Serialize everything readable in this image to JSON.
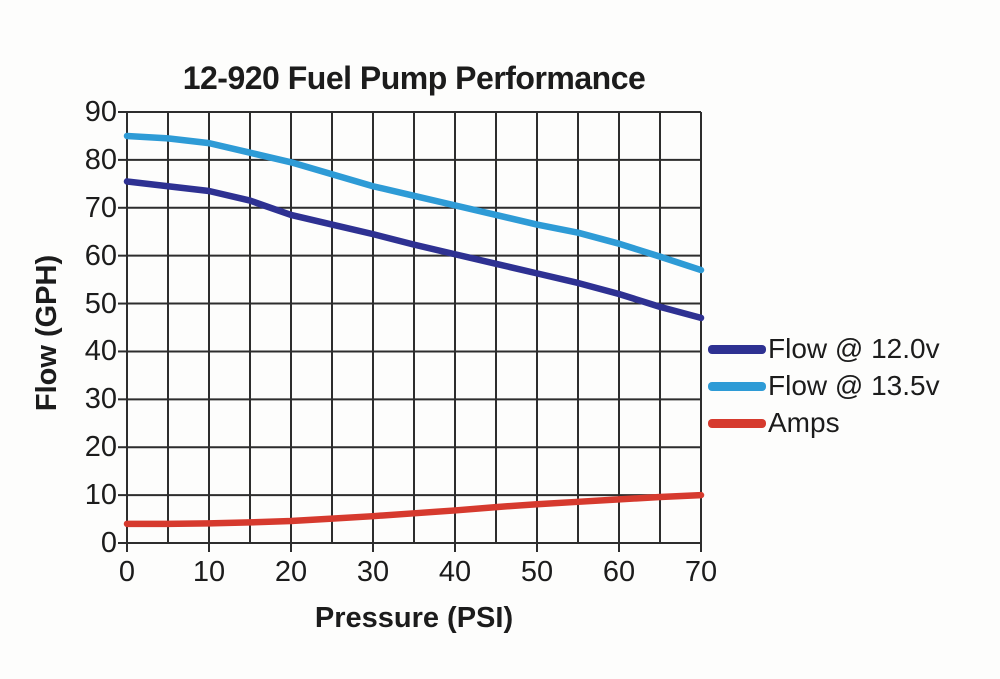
{
  "colors": {
    "grid": "#2d2d2d",
    "text": "#1c1c1c",
    "background": "#fdfdfc",
    "flow_12v": "#2E3192",
    "flow_135v": "#2E9BD6",
    "amps": "#D63A2E"
  },
  "chart_data": {
    "type": "line",
    "title": "12-920 Fuel Pump Performance",
    "xlabel": "Pressure (PSI)",
    "ylabel": "Flow (GPH)",
    "xlim": [
      0,
      70
    ],
    "ylim": [
      0,
      90
    ],
    "x_ticks": [
      0,
      10,
      20,
      30,
      40,
      50,
      60,
      70
    ],
    "y_ticks": [
      0,
      10,
      20,
      30,
      40,
      50,
      60,
      70,
      80,
      90
    ],
    "x_minor_step": 5,
    "grid": "on",
    "legend_position": "right",
    "x": [
      0,
      5,
      10,
      15,
      20,
      25,
      30,
      35,
      40,
      45,
      50,
      55,
      60,
      65,
      70
    ],
    "series": [
      {
        "name": "Flow @ 12.0v",
        "color": "#2E3192",
        "values": [
          75.5,
          74.5,
          73.5,
          71.5,
          68.5,
          66.5,
          64.5,
          62.3,
          60.3,
          58.3,
          56.3,
          54.3,
          52,
          49.3,
          47
        ]
      },
      {
        "name": "Flow @ 13.5v",
        "color": "#2E9BD6",
        "values": [
          85,
          84.5,
          83.5,
          81.5,
          79.5,
          77,
          74.5,
          72.5,
          70.5,
          68.5,
          66.5,
          64.8,
          62.5,
          59.8,
          57
        ]
      },
      {
        "name": "Amps",
        "color": "#D63A2E",
        "values": [
          4,
          4,
          4.1,
          4.3,
          4.6,
          5.1,
          5.6,
          6.2,
          6.8,
          7.5,
          8.1,
          8.6,
          9.1,
          9.6,
          10
        ]
      }
    ]
  }
}
